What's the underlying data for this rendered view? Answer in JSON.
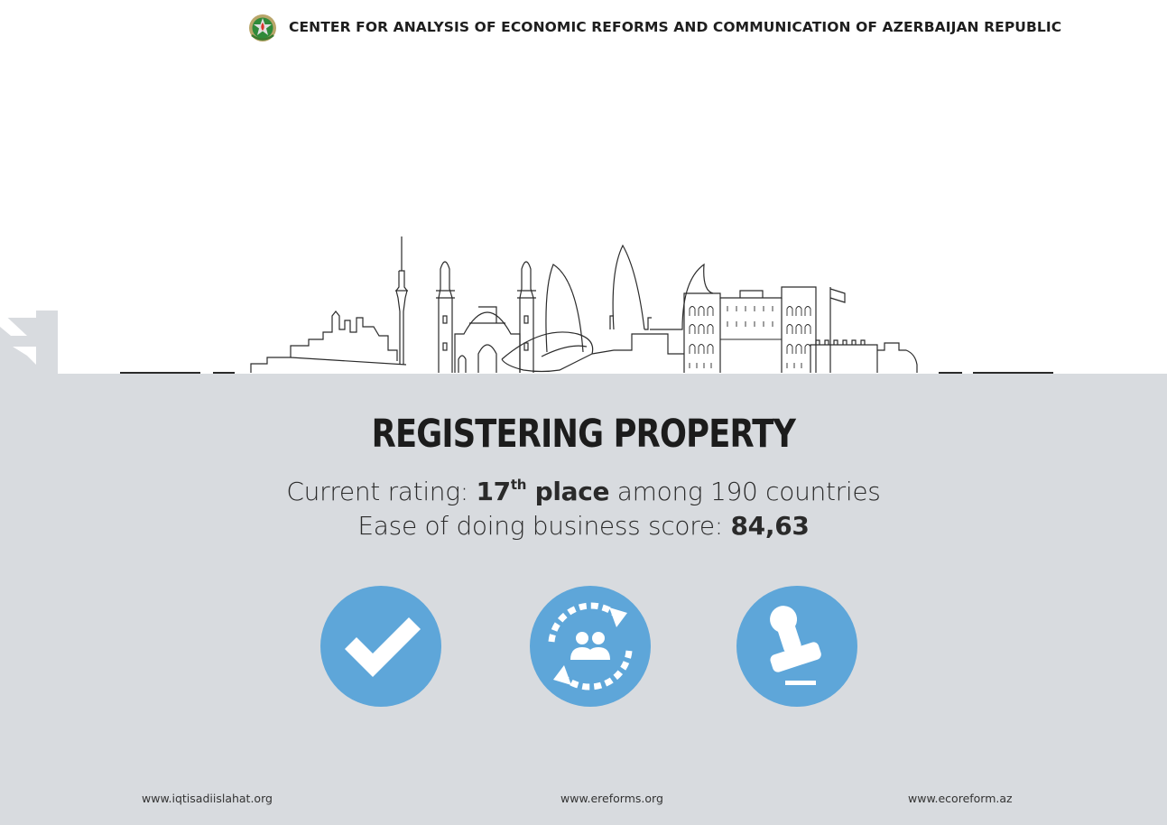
{
  "header": {
    "emblem_icon": "azerbaijan-state-emblem-icon",
    "org_name": "CENTER FOR ANALYSIS OF ECONOMIC REFORMS AND COMMUNICATION OF AZERBAIJAN REPUBLIC"
  },
  "skyline_illustration": "baku-city-skyline-illustration",
  "main": {
    "title": "REGISTERING PROPERTY",
    "rating_prefix": "Current rating: ",
    "rating_rank": "17",
    "rating_rank_suffix": "th",
    "rating_place_word": " place",
    "rating_suffix": " among 190 countries",
    "score_prefix": "Ease of doing business score: ",
    "score_value": "84,63"
  },
  "icons": [
    {
      "name": "checkmark-icon"
    },
    {
      "name": "people-exchange-icon"
    },
    {
      "name": "stamp-icon"
    }
  ],
  "colors": {
    "panel_background": "#d8dbdf",
    "icon_circle": "#5ea6d9",
    "text_dark": "#1c1c1c"
  },
  "footer": {
    "link_1": "www.iqtisadiislahat.org",
    "link_2": "www.ereforms.org",
    "link_3": "www.ecoreform.az"
  }
}
